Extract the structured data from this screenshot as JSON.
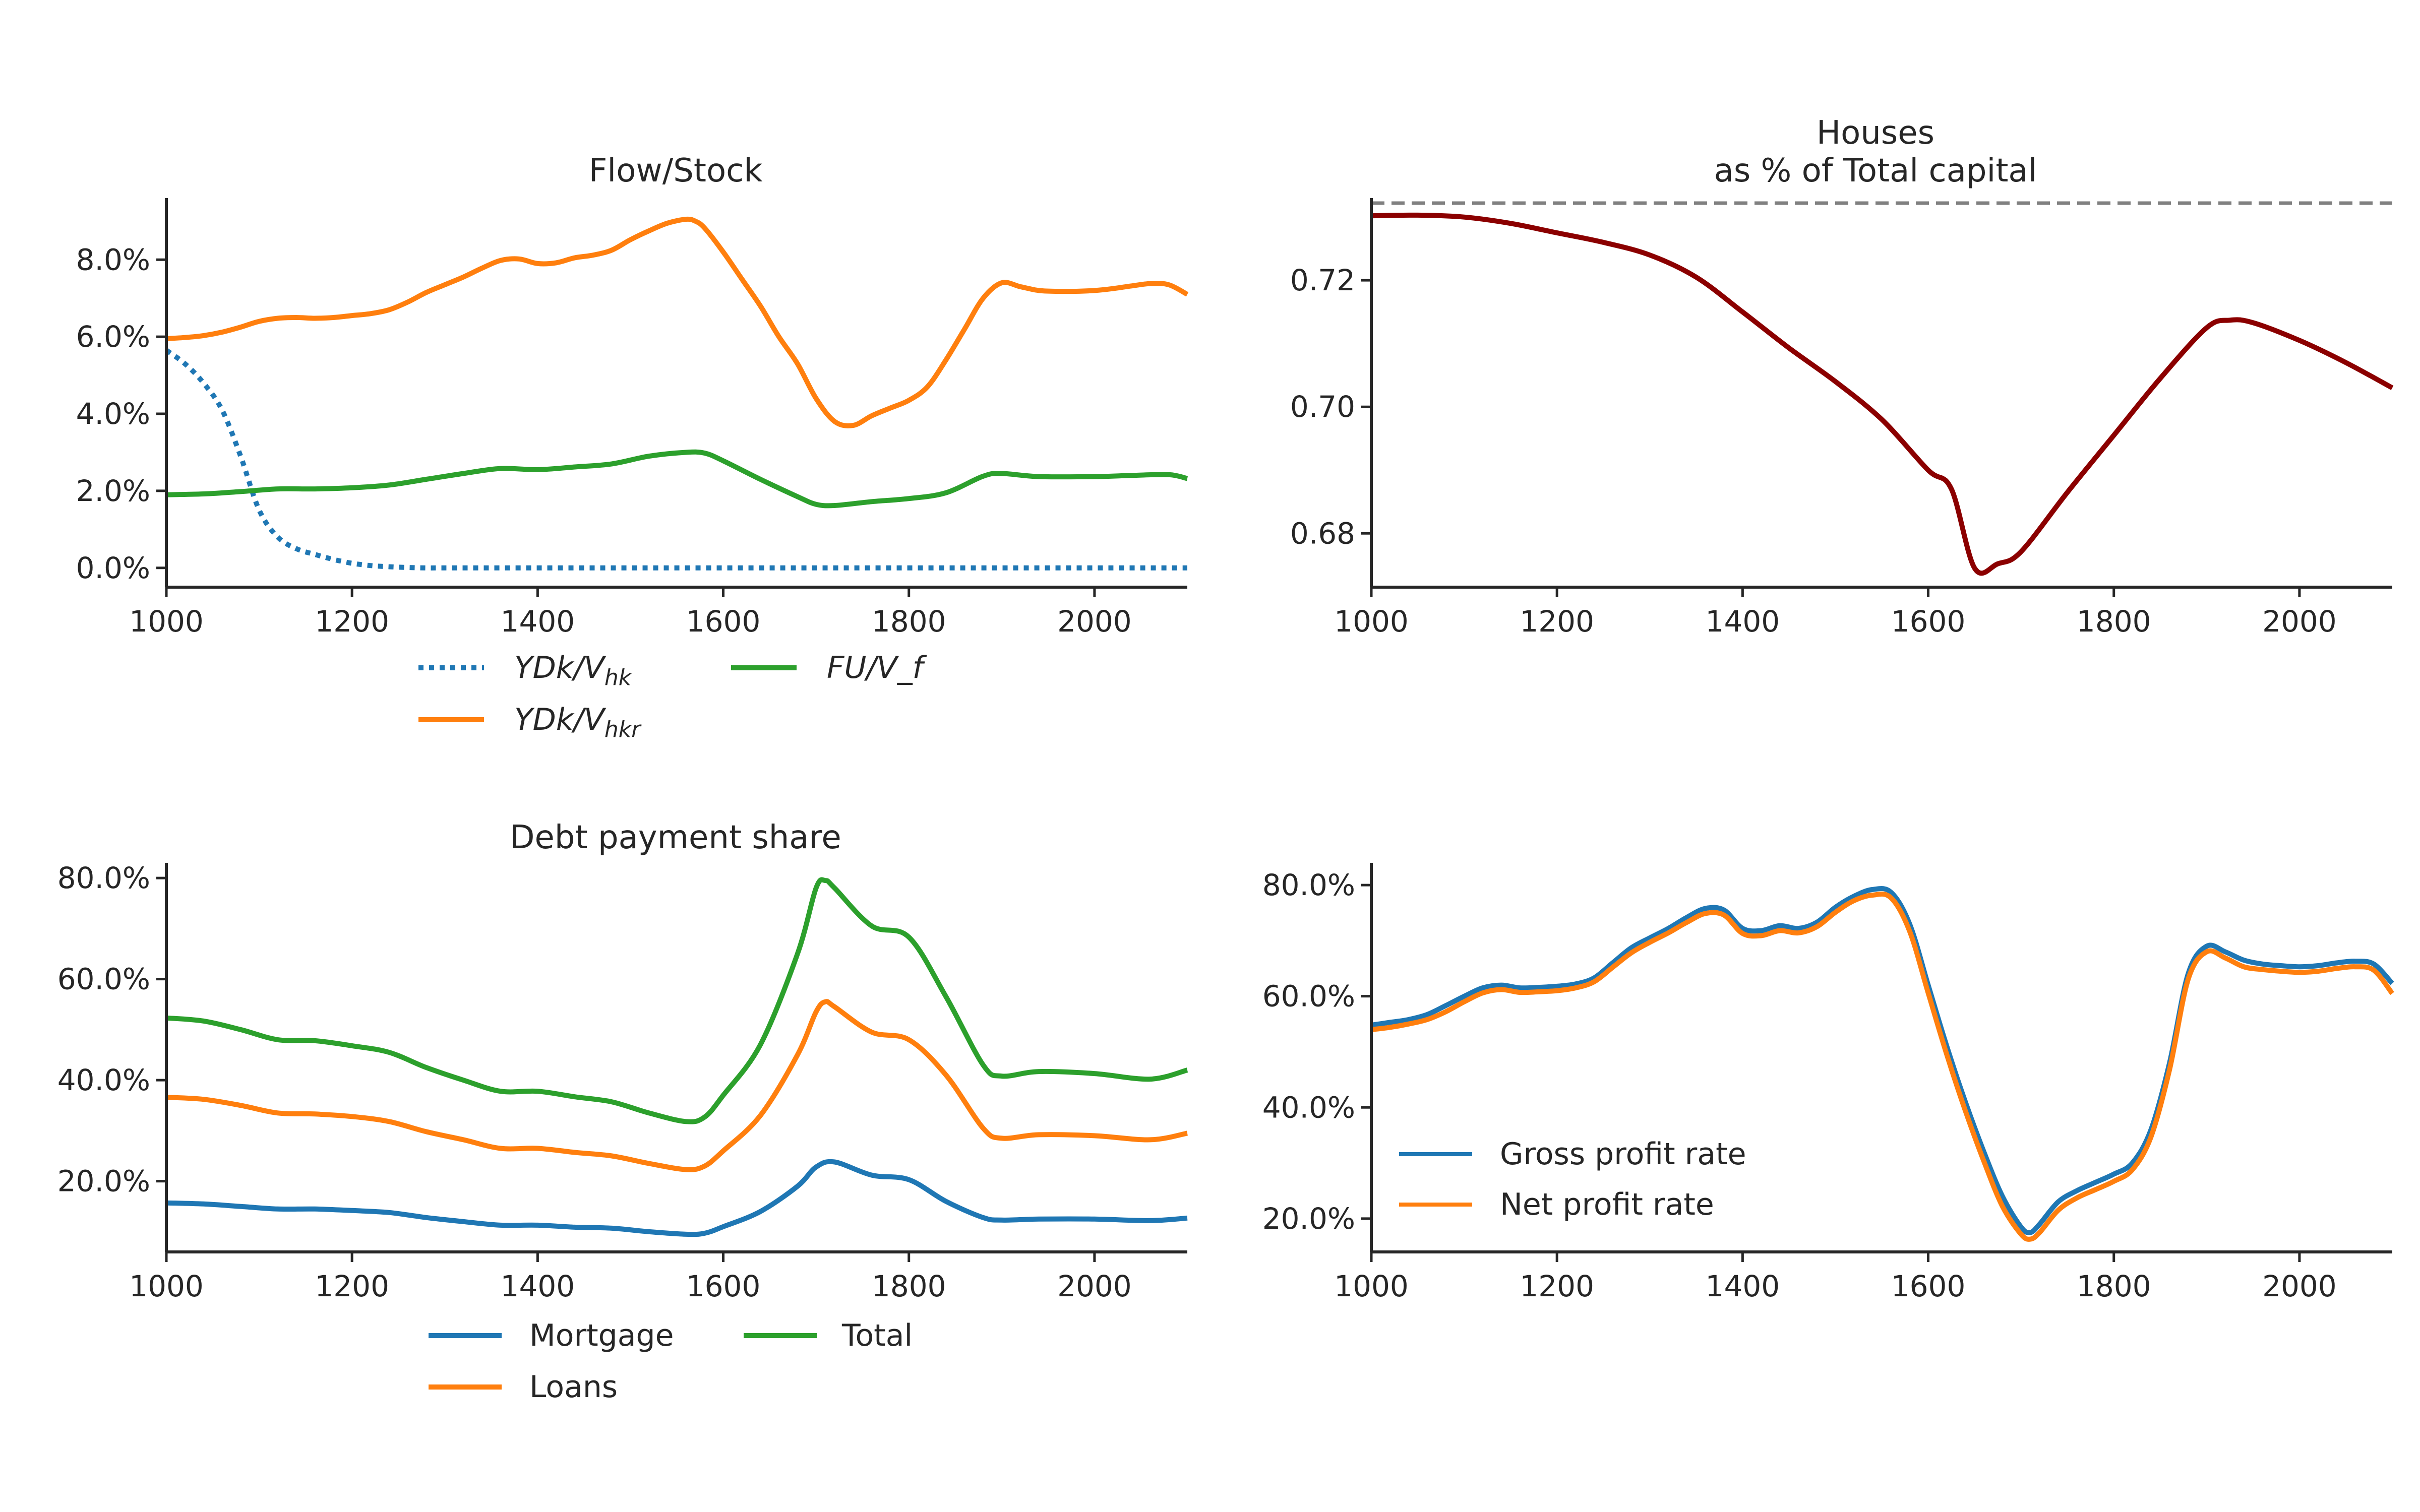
{
  "figure": {
    "background": "#ffffff"
  },
  "chart_data": [
    {
      "id": "flow-stock",
      "type": "line",
      "title": "Flow/Stock",
      "xlabel": "",
      "ylabel": "",
      "xlim": [
        1000,
        2100
      ],
      "ylim": [
        -0.005,
        0.096
      ],
      "xticks": [
        1000,
        1200,
        1400,
        1600,
        1800,
        2000
      ],
      "xtick_labels": [
        "1000",
        "1200",
        "1400",
        "1600",
        "1800",
        "2000"
      ],
      "yticks": [
        0.0,
        0.02,
        0.04,
        0.06,
        0.08
      ],
      "ytick_labels": [
        "0.0%",
        "2.0%",
        "4.0%",
        "6.0%",
        "8.0%"
      ],
      "legend_position": "below",
      "legend_columns": 2,
      "series": [
        {
          "key": "ydk-vhk",
          "name": "YDk/V_hk",
          "legend_label": {
            "base": "YDk/V",
            "sub": "hk"
          },
          "color": "#1f77b4",
          "dash": "dotted",
          "x": [
            1000,
            1020,
            1040,
            1060,
            1080,
            1100,
            1120,
            1140,
            1160,
            1180,
            1200,
            1220,
            1240,
            1260,
            1280,
            1300,
            1400,
            1500,
            1600,
            1700,
            1800,
            1900,
            2000,
            2100
          ],
          "values": [
            0.0565,
            0.053,
            0.048,
            0.041,
            0.029,
            0.015,
            0.008,
            0.005,
            0.0035,
            0.0022,
            0.0012,
            0.0006,
            0.0003,
            0.0001,
            0.0,
            0.0,
            0.0,
            0.0,
            0.0,
            0.0,
            0.0,
            0.0,
            0.0,
            0.0
          ]
        },
        {
          "key": "ydk-vhkr",
          "name": "YDk/V_hkr",
          "legend_label": {
            "base": "YDk/V",
            "sub": "hkr"
          },
          "color": "#ff7f0e",
          "dash": "solid",
          "x": [
            1000,
            1020,
            1040,
            1060,
            1080,
            1100,
            1120,
            1140,
            1160,
            1180,
            1200,
            1220,
            1240,
            1260,
            1280,
            1300,
            1320,
            1340,
            1360,
            1380,
            1400,
            1420,
            1440,
            1460,
            1480,
            1500,
            1520,
            1540,
            1560,
            1570,
            1580,
            1600,
            1620,
            1640,
            1660,
            1680,
            1700,
            1720,
            1740,
            1760,
            1780,
            1800,
            1820,
            1840,
            1860,
            1880,
            1900,
            1920,
            1940,
            1960,
            1980,
            2000,
            2020,
            2040,
            2060,
            2080,
            2100
          ],
          "values": [
            0.0595,
            0.0598,
            0.0603,
            0.0612,
            0.0625,
            0.064,
            0.0648,
            0.065,
            0.0648,
            0.065,
            0.0655,
            0.066,
            0.067,
            0.069,
            0.0715,
            0.0735,
            0.0755,
            0.0778,
            0.0798,
            0.0802,
            0.079,
            0.0792,
            0.0805,
            0.0812,
            0.0825,
            0.0852,
            0.0875,
            0.0895,
            0.0905,
            0.09,
            0.0882,
            0.082,
            0.075,
            0.068,
            0.06,
            0.053,
            0.044,
            0.038,
            0.037,
            0.0395,
            0.0415,
            0.0435,
            0.047,
            0.054,
            0.062,
            0.07,
            0.074,
            0.073,
            0.072,
            0.0718,
            0.0718,
            0.072,
            0.0725,
            0.0732,
            0.0738,
            0.0735,
            0.071
          ]
        },
        {
          "key": "fu-vf",
          "name": "FU/V_f",
          "legend_label": {
            "base": "FU/V_f",
            "sub": ""
          },
          "color": "#2ca02c",
          "dash": "solid",
          "x": [
            1000,
            1040,
            1080,
            1120,
            1160,
            1200,
            1240,
            1280,
            1320,
            1360,
            1400,
            1440,
            1480,
            1520,
            1560,
            1580,
            1600,
            1640,
            1680,
            1700,
            1720,
            1760,
            1800,
            1840,
            1880,
            1900,
            1940,
            2000,
            2040,
            2080,
            2100
          ],
          "values": [
            0.019,
            0.0192,
            0.0198,
            0.0205,
            0.0205,
            0.0208,
            0.0215,
            0.023,
            0.0245,
            0.0258,
            0.0255,
            0.0262,
            0.027,
            0.029,
            0.03,
            0.0298,
            0.0278,
            0.023,
            0.0185,
            0.0165,
            0.0162,
            0.0172,
            0.018,
            0.0195,
            0.0238,
            0.0245,
            0.0237,
            0.0237,
            0.024,
            0.0242,
            0.0232
          ]
        }
      ]
    },
    {
      "id": "houses",
      "type": "line",
      "title": "Houses",
      "subtitle": "as % of Total capital",
      "xlabel": "",
      "ylabel": "",
      "xlim": [
        1000,
        2100
      ],
      "ylim": [
        0.6715,
        0.733
      ],
      "xticks": [
        1000,
        1200,
        1400,
        1600,
        1800,
        2000
      ],
      "xtick_labels": [
        "1000",
        "1200",
        "1400",
        "1600",
        "1800",
        "2000"
      ],
      "yticks": [
        0.68,
        0.7,
        0.72
      ],
      "ytick_labels": [
        "0.68",
        "0.70",
        "0.72"
      ],
      "reference_line": {
        "y": 0.7322,
        "color": "#808080",
        "dash": "dashed"
      },
      "series": [
        {
          "key": "houses-share",
          "color": "#8b0000",
          "dash": "solid",
          "x": [
            1000,
            1050,
            1100,
            1150,
            1200,
            1250,
            1300,
            1350,
            1400,
            1450,
            1500,
            1550,
            1600,
            1625,
            1650,
            1675,
            1700,
            1750,
            1800,
            1850,
            1900,
            1925,
            1950,
            2000,
            2050,
            2100
          ],
          "values": [
            0.7302,
            0.7303,
            0.73,
            0.729,
            0.7275,
            0.726,
            0.724,
            0.7205,
            0.715,
            0.7093,
            0.704,
            0.698,
            0.69,
            0.687,
            0.6745,
            0.6752,
            0.6771,
            0.6865,
            0.6955,
            0.7045,
            0.7125,
            0.7137,
            0.7133,
            0.7105,
            0.707,
            0.703
          ]
        }
      ]
    },
    {
      "id": "debt-payment-share",
      "type": "line",
      "title": "Debt payment share",
      "xlabel": "",
      "ylabel": "",
      "xlim": [
        1000,
        2100
      ],
      "ylim": [
        0.06,
        0.83
      ],
      "xticks": [
        1000,
        1200,
        1400,
        1600,
        1800,
        2000
      ],
      "xtick_labels": [
        "1000",
        "1200",
        "1400",
        "1600",
        "1800",
        "2000"
      ],
      "yticks": [
        0.2,
        0.4,
        0.6,
        0.8
      ],
      "ytick_labels": [
        "20.0%",
        "40.0%",
        "60.0%",
        "80.0%"
      ],
      "legend_position": "below",
      "legend_columns": 2,
      "series": [
        {
          "key": "mortgage",
          "name": "Mortgage",
          "legend_label": {
            "base": "Mortgage",
            "sub": ""
          },
          "color": "#1f77b4",
          "dash": "solid",
          "x": [
            1000,
            1040,
            1080,
            1120,
            1160,
            1200,
            1240,
            1280,
            1320,
            1360,
            1400,
            1440,
            1480,
            1520,
            1560,
            1580,
            1600,
            1640,
            1680,
            1700,
            1720,
            1760,
            1800,
            1840,
            1880,
            1900,
            1940,
            2000,
            2060,
            2100
          ],
          "values": [
            0.157,
            0.155,
            0.15,
            0.145,
            0.145,
            0.142,
            0.138,
            0.128,
            0.12,
            0.113,
            0.113,
            0.109,
            0.107,
            0.1,
            0.095,
            0.097,
            0.11,
            0.14,
            0.19,
            0.228,
            0.238,
            0.212,
            0.203,
            0.16,
            0.128,
            0.123,
            0.125,
            0.125,
            0.122,
            0.127
          ]
        },
        {
          "key": "loans",
          "name": "Loans",
          "legend_label": {
            "base": "Loans",
            "sub": ""
          },
          "color": "#ff7f0e",
          "dash": "solid",
          "x": [
            1000,
            1040,
            1080,
            1120,
            1160,
            1200,
            1240,
            1280,
            1320,
            1360,
            1400,
            1440,
            1480,
            1520,
            1560,
            1580,
            1600,
            1640,
            1680,
            1700,
            1710,
            1720,
            1760,
            1800,
            1840,
            1880,
            1900,
            1940,
            2000,
            2060,
            2100
          ],
          "values": [
            0.366,
            0.362,
            0.35,
            0.335,
            0.333,
            0.328,
            0.318,
            0.298,
            0.282,
            0.265,
            0.265,
            0.257,
            0.25,
            0.235,
            0.223,
            0.23,
            0.26,
            0.33,
            0.45,
            0.535,
            0.555,
            0.545,
            0.495,
            0.48,
            0.41,
            0.305,
            0.285,
            0.292,
            0.29,
            0.282,
            0.295
          ]
        },
        {
          "key": "total",
          "name": "Total",
          "legend_label": {
            "base": "Total",
            "sub": ""
          },
          "color": "#2ca02c",
          "dash": "solid",
          "x": [
            1000,
            1040,
            1080,
            1120,
            1160,
            1200,
            1240,
            1280,
            1320,
            1360,
            1400,
            1440,
            1480,
            1520,
            1560,
            1580,
            1600,
            1640,
            1680,
            1700,
            1710,
            1720,
            1760,
            1800,
            1840,
            1880,
            1900,
            1940,
            2000,
            2060,
            2100
          ],
          "values": [
            0.523,
            0.517,
            0.5,
            0.48,
            0.478,
            0.468,
            0.455,
            0.425,
            0.4,
            0.378,
            0.378,
            0.367,
            0.357,
            0.335,
            0.318,
            0.327,
            0.37,
            0.47,
            0.65,
            0.78,
            0.795,
            0.78,
            0.705,
            0.683,
            0.565,
            0.43,
            0.408,
            0.417,
            0.413,
            0.402,
            0.42
          ]
        }
      ]
    },
    {
      "id": "profit-rate",
      "type": "line",
      "title": "",
      "xlabel": "",
      "ylabel": "",
      "xlim": [
        1000,
        2100
      ],
      "ylim": [
        0.14,
        0.84
      ],
      "xticks": [
        1000,
        1200,
        1400,
        1600,
        1800,
        2000
      ],
      "xtick_labels": [
        "1000",
        "1200",
        "1400",
        "1600",
        "1800",
        "2000"
      ],
      "yticks": [
        0.2,
        0.4,
        0.6,
        0.8
      ],
      "ytick_labels": [
        "20.0%",
        "40.0%",
        "60.0%",
        "80.0%"
      ],
      "legend_position": "lower-left",
      "legend_columns": 1,
      "series": [
        {
          "key": "gross",
          "name": "Gross profit rate",
          "legend_label": {
            "base": "Gross profit rate",
            "sub": ""
          },
          "color": "#1f77b4",
          "dash": "solid",
          "x": [
            1000,
            1020,
            1040,
            1060,
            1080,
            1100,
            1120,
            1140,
            1160,
            1180,
            1200,
            1220,
            1240,
            1260,
            1280,
            1300,
            1320,
            1340,
            1360,
            1380,
            1400,
            1420,
            1440,
            1460,
            1480,
            1500,
            1520,
            1540,
            1560,
            1580,
            1600,
            1620,
            1640,
            1660,
            1680,
            1700,
            1710,
            1720,
            1740,
            1760,
            1780,
            1800,
            1820,
            1840,
            1860,
            1880,
            1900,
            1920,
            1940,
            1960,
            1980,
            2000,
            2020,
            2040,
            2060,
            2080,
            2100
          ],
          "values": [
            0.548,
            0.553,
            0.558,
            0.567,
            0.583,
            0.6,
            0.615,
            0.62,
            0.615,
            0.616,
            0.618,
            0.622,
            0.633,
            0.66,
            0.687,
            0.705,
            0.722,
            0.742,
            0.758,
            0.755,
            0.722,
            0.718,
            0.727,
            0.722,
            0.733,
            0.76,
            0.78,
            0.792,
            0.787,
            0.73,
            0.62,
            0.51,
            0.41,
            0.32,
            0.24,
            0.185,
            0.175,
            0.19,
            0.23,
            0.25,
            0.265,
            0.28,
            0.3,
            0.36,
            0.48,
            0.64,
            0.69,
            0.68,
            0.665,
            0.658,
            0.655,
            0.653,
            0.655,
            0.66,
            0.663,
            0.658,
            0.623
          ]
        },
        {
          "key": "net",
          "name": "Net profit rate",
          "legend_label": {
            "base": "Net profit rate",
            "sub": ""
          },
          "color": "#ff7f0e",
          "dash": "solid",
          "x": [
            1000,
            1020,
            1040,
            1060,
            1080,
            1100,
            1120,
            1140,
            1160,
            1180,
            1200,
            1220,
            1240,
            1260,
            1280,
            1300,
            1320,
            1340,
            1360,
            1380,
            1400,
            1420,
            1440,
            1460,
            1480,
            1500,
            1520,
            1540,
            1560,
            1580,
            1600,
            1620,
            1640,
            1660,
            1680,
            1700,
            1710,
            1720,
            1740,
            1760,
            1780,
            1800,
            1820,
            1840,
            1860,
            1880,
            1900,
            1920,
            1940,
            1960,
            1980,
            2000,
            2020,
            2040,
            2060,
            2080,
            2100
          ],
          "values": [
            0.54,
            0.544,
            0.55,
            0.558,
            0.572,
            0.59,
            0.606,
            0.612,
            0.607,
            0.608,
            0.61,
            0.615,
            0.626,
            0.652,
            0.678,
            0.697,
            0.714,
            0.733,
            0.749,
            0.746,
            0.713,
            0.709,
            0.718,
            0.714,
            0.725,
            0.751,
            0.772,
            0.782,
            0.777,
            0.717,
            0.606,
            0.495,
            0.394,
            0.303,
            0.222,
            0.172,
            0.163,
            0.175,
            0.215,
            0.237,
            0.252,
            0.267,
            0.288,
            0.347,
            0.468,
            0.63,
            0.68,
            0.669,
            0.653,
            0.648,
            0.645,
            0.643,
            0.645,
            0.65,
            0.653,
            0.647,
            0.605
          ]
        }
      ]
    }
  ]
}
